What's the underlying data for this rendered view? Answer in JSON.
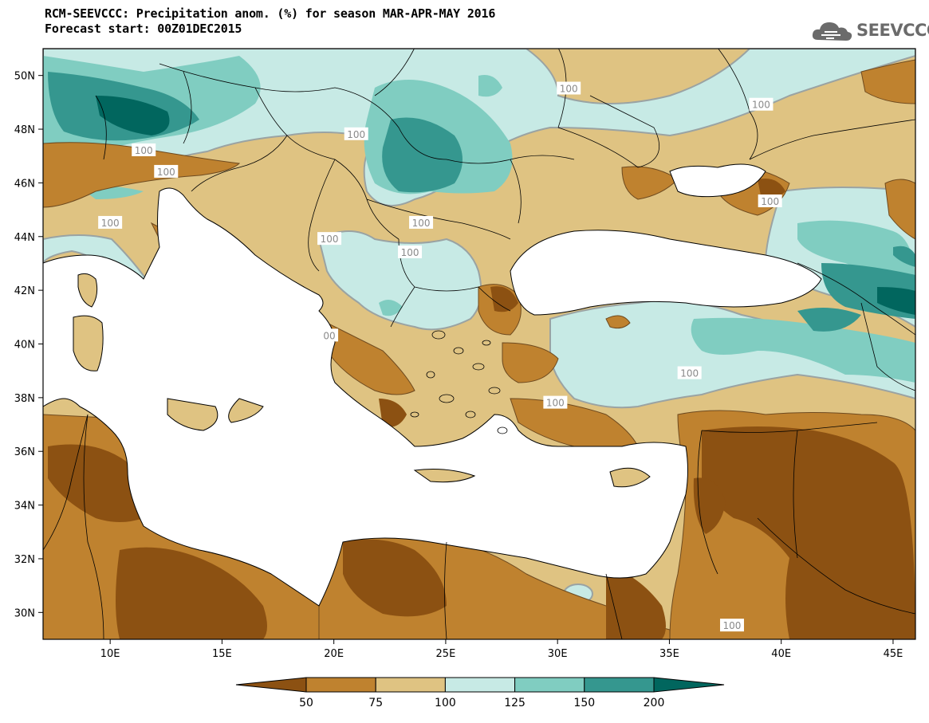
{
  "header": {
    "title": "RCM-SEEVCCC: Precipitation anom. (%) for season MAR-APR-MAY 2016",
    "subtitle": "Forecast start: 00Z01DEC2015",
    "logo_text": "SEEVCCC"
  },
  "map": {
    "lon_range": [
      7,
      46
    ],
    "lat_range": [
      29,
      51
    ],
    "lon_ticks": [
      {
        "value": 10,
        "label": "10E"
      },
      {
        "value": 15,
        "label": "15E"
      },
      {
        "value": 20,
        "label": "20E"
      },
      {
        "value": 25,
        "label": "25E"
      },
      {
        "value": 30,
        "label": "30E"
      },
      {
        "value": 35,
        "label": "35E"
      },
      {
        "value": 40,
        "label": "40E"
      },
      {
        "value": 45,
        "label": "45E"
      }
    ],
    "lat_ticks": [
      {
        "value": 30,
        "label": "30N"
      },
      {
        "value": 32,
        "label": "32N"
      },
      {
        "value": 34,
        "label": "34N"
      },
      {
        "value": 36,
        "label": "36N"
      },
      {
        "value": 38,
        "label": "38N"
      },
      {
        "value": 40,
        "label": "40N"
      },
      {
        "value": 42,
        "label": "42N"
      },
      {
        "value": 44,
        "label": "44N"
      },
      {
        "value": 46,
        "label": "46N"
      },
      {
        "value": 48,
        "label": "48N"
      },
      {
        "value": 50,
        "label": "50N"
      }
    ],
    "contour_labels": [
      {
        "lon": 30.5,
        "lat": 49.5,
        "text": "100"
      },
      {
        "lon": 39.1,
        "lat": 48.9,
        "text": "100"
      },
      {
        "lon": 21.0,
        "lat": 47.8,
        "text": "100"
      },
      {
        "lon": 11.5,
        "lat": 47.2,
        "text": "100"
      },
      {
        "lon": 12.5,
        "lat": 46.4,
        "text": "100"
      },
      {
        "lon": 39.5,
        "lat": 45.3,
        "text": "100"
      },
      {
        "lon": 10.0,
        "lat": 44.5,
        "text": "100"
      },
      {
        "lon": 23.9,
        "lat": 44.5,
        "text": "100"
      },
      {
        "lon": 19.8,
        "lat": 43.9,
        "text": "100"
      },
      {
        "lon": 23.4,
        "lat": 43.4,
        "text": "100"
      },
      {
        "lon": 19.8,
        "lat": 40.3,
        "text": "00"
      },
      {
        "lon": 35.9,
        "lat": 38.9,
        "text": "100"
      },
      {
        "lon": 29.9,
        "lat": 37.8,
        "text": "100"
      },
      {
        "lon": 37.8,
        "lat": 29.5,
        "text": "100"
      }
    ],
    "colors": {
      "below_50": "#8c5112",
      "c50_75": "#bf822f",
      "c75_100": "#dfc382",
      "c100_125": "#c7eae5",
      "c125_150": "#80cdc1",
      "c150_200": "#35978f",
      "above_200": "#01665e",
      "sea": "#ffffff"
    }
  },
  "colorbar": {
    "levels": [
      "50",
      "75",
      "100",
      "125",
      "150",
      "200"
    ],
    "colors": [
      "#8c5112",
      "#bf822f",
      "#dfc382",
      "#c7eae5",
      "#80cdc1",
      "#35978f",
      "#01665e"
    ]
  }
}
